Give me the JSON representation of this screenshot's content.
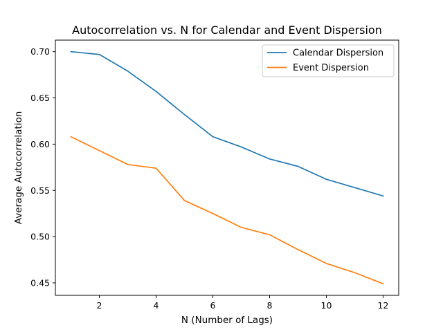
{
  "chart_data": {
    "type": "line",
    "title": "Autocorrelation vs. N for Calendar and Event Dispersion",
    "xlabel": "N (Number of Lags)",
    "ylabel": "Average Autocorrelation",
    "x": [
      1,
      2,
      3,
      4,
      5,
      6,
      7,
      8,
      9,
      10,
      11,
      12
    ],
    "xlim": [
      0.45,
      12.55
    ],
    "ylim": [
      0.4365,
      0.7125
    ],
    "xticks": [
      2,
      4,
      6,
      8,
      10,
      12
    ],
    "xtick_labels": [
      "2",
      "4",
      "6",
      "8",
      "10",
      "12"
    ],
    "yticks": [
      0.45,
      0.5,
      0.55,
      0.6,
      0.65,
      0.7
    ],
    "ytick_labels": [
      "0.45",
      "0.50",
      "0.55",
      "0.60",
      "0.65",
      "0.70"
    ],
    "grid": false,
    "legend_position": "top-right",
    "series": [
      {
        "name": "Calendar Dispersion",
        "color": "#1f77b4",
        "values": [
          0.7,
          0.697,
          0.679,
          0.657,
          0.632,
          0.608,
          0.597,
          0.584,
          0.576,
          0.562,
          0.553,
          0.544
        ]
      },
      {
        "name": "Event Dispersion",
        "color": "#ff7f0e",
        "values": [
          0.608,
          0.593,
          0.578,
          0.574,
          0.539,
          0.525,
          0.51,
          0.502,
          0.486,
          0.471,
          0.461,
          0.449
        ]
      }
    ]
  }
}
